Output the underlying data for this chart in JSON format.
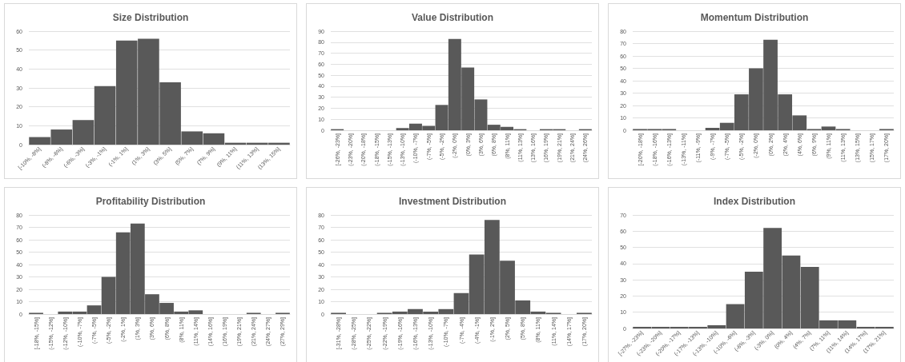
{
  "chart_data": [
    {
      "type": "bar",
      "title": "Size Distribution",
      "categories": [
        "[-10%, -8%]",
        "(-8%, -6%]",
        "(-6%, -3%]",
        "(-3%, -1%]",
        "(-1%, 1%]",
        "(1%, 3%]",
        "(3%, 5%]",
        "(5%, 7%]",
        "(7%, 9%]",
        "(9%, 11%]",
        "(11%, 13%]",
        "(13%, 15%]"
      ],
      "values": [
        4,
        8,
        13,
        31,
        55,
        56,
        33,
        7,
        6,
        1,
        1,
        1
      ],
      "color": "#595959",
      "ylim": [
        0,
        60
      ],
      "yticks": [
        0,
        10,
        20,
        30,
        40,
        50,
        60
      ],
      "grid": "y"
    },
    {
      "type": "bar",
      "title": "Value Distribution",
      "categories": [
        "[-26%, -23%]",
        "(-23%, -20%]",
        "(-20%, -18%]",
        "(-18%, -15%]",
        "(-15%, -13%]",
        "(-13%, -10%]",
        "(-10%, -7%]",
        "(-7%, -5%]",
        "(-5%, -2%]",
        "(-2%, 0%]",
        "(0%, 3%]",
        "(3%, 6%]",
        "(6%, 8%]",
        "(8%, 11%]",
        "(11%, 13%]",
        "(13%, 16%]",
        "(16%, 19%]",
        "(19%, 21%]",
        "(21%, 24%]",
        "(24%, 26%]"
      ],
      "values": [
        1,
        0,
        0,
        0,
        0,
        2,
        6,
        4,
        23,
        83,
        57,
        28,
        5,
        3,
        1,
        0,
        1,
        1,
        0,
        1
      ],
      "color": "#595959",
      "ylim": [
        0,
        90
      ],
      "yticks": [
        0,
        10,
        20,
        30,
        40,
        50,
        60,
        70,
        80,
        90
      ],
      "grid": "y"
    },
    {
      "type": "bar",
      "title": "Momentum Distribution",
      "categories": [
        "[-20%, -18%]",
        "(-18%, -16%]",
        "(-16%, -13%]",
        "(-13%, -11%]",
        "(-11%, -9%]",
        "(-9%, -7%]",
        "(-7%, -5%]",
        "(-5%, -2%]",
        "(-2%, 0%]",
        "(0%, 2%]",
        "(2%, 4%]",
        "(4%, 6%]",
        "(6%, 9%]",
        "(9%, 11%]",
        "(11%, 13%]",
        "(13%, 15%]",
        "(15%, 17%]",
        "(17%, 20%]"
      ],
      "values": [
        1,
        1,
        1,
        0,
        0,
        2,
        6,
        29,
        50,
        73,
        29,
        12,
        1,
        3,
        1,
        0,
        0,
        1
      ],
      "color": "#595959",
      "ylim": [
        0,
        80
      ],
      "yticks": [
        0,
        10,
        20,
        30,
        40,
        50,
        60,
        70,
        80
      ],
      "grid": "y"
    },
    {
      "type": "bar",
      "title": "Profitability Distribution",
      "categories": [
        "[-18%, -15%]",
        "(-15%, -12%]",
        "(-12%, -10%]",
        "(-10%, -7%]",
        "(-7%, -5%]",
        "(-5%, -2%]",
        "(-2%, 1%]",
        "(1%, 3%]",
        "(3%, 6%]",
        "(6%, 8%]",
        "(8%, 11%]",
        "(11%, 14%]",
        "(14%, 16%]",
        "(16%, 19%]",
        "(19%, 21%]",
        "(21%, 24%]",
        "(24%, 27%]",
        "(27%, 29%]"
      ],
      "values": [
        1,
        0,
        2,
        2,
        7,
        30,
        66,
        73,
        16,
        9,
        2,
        3,
        0,
        0,
        0,
        1,
        0,
        1
      ],
      "color": "#595959",
      "ylim": [
        0,
        80
      ],
      "yticks": [
        0,
        10,
        20,
        30,
        40,
        50,
        60,
        70,
        80
      ],
      "grid": "y"
    },
    {
      "type": "bar",
      "title": "Investment Distribution",
      "categories": [
        "[-31%, -28%]",
        "(-28%, -25%]",
        "(-25%, -22%]",
        "(-22%, -19%]",
        "(-19%, -16%]",
        "(-16%, -13%]",
        "(-13%, -10%]",
        "(-10%, -7%]",
        "(-7%, -4%]",
        "(-4%, -1%]",
        "(-1%, 2%]",
        "(2%, 5%]",
        "(5%, 8%]",
        "(8%, 11%]",
        "(11%, 14%]",
        "(14%, 17%]",
        "(17%, 20%]"
      ],
      "values": [
        1,
        0,
        0,
        1,
        2,
        4,
        2,
        4,
        17,
        48,
        76,
        43,
        11,
        2,
        1,
        0,
        1
      ],
      "color": "#595959",
      "ylim": [
        0,
        80
      ],
      "yticks": [
        0,
        10,
        20,
        30,
        40,
        50,
        60,
        70,
        80
      ],
      "grid": "y"
    },
    {
      "type": "bar",
      "title": "Index Distribution",
      "categories": [
        "[-27%, -23%]",
        "(-23%, -20%]",
        "(-20%, -17%]",
        "(-17%, -13%]",
        "(-13%, -10%]",
        "(-10%, -6%]",
        "(-6%, -3%]",
        "(-3%, 0%]",
        "(0%, 4%]",
        "(4%, 7%]",
        "(7%, 11%]",
        "(11%, 14%]",
        "(14%, 17%]",
        "(17%, 21%]"
      ],
      "values": [
        1,
        1,
        1,
        1,
        2,
        15,
        35,
        62,
        45,
        38,
        5,
        5,
        1,
        1
      ],
      "color": "#595959",
      "ylim": [
        0,
        70
      ],
      "yticks": [
        0,
        10,
        20,
        30,
        40,
        50,
        60,
        70
      ],
      "grid": "y"
    }
  ]
}
